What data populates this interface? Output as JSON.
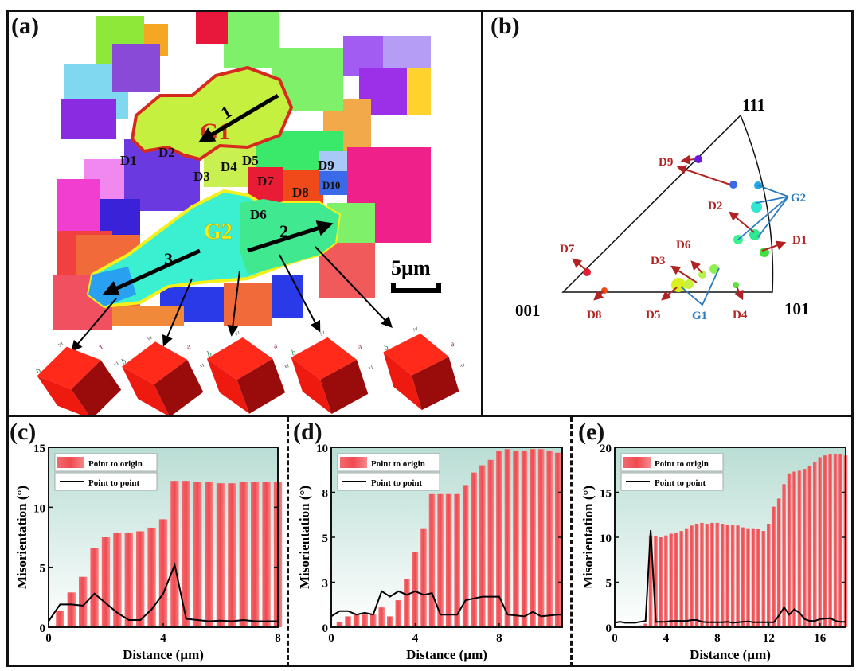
{
  "panels": {
    "a": {
      "label": "(a)"
    },
    "b": {
      "label": "(b)"
    },
    "c": {
      "label": "(c)"
    },
    "d": {
      "label": "(d)"
    },
    "e": {
      "label": "(e)"
    }
  },
  "map": {
    "scale_bar": "5µm",
    "groups": [
      {
        "name": "G1",
        "color": "#d62a1e"
      },
      {
        "name": "G2",
        "color": "#f4f01c"
      }
    ],
    "arrows": [
      "1",
      "2",
      "3"
    ],
    "labels": [
      "D1",
      "D2",
      "D3",
      "D4",
      "D5",
      "D6",
      "D7",
      "D8",
      "D9",
      "D10"
    ],
    "cube_axes": {
      "a": "a",
      "b": "b",
      "x1": "x1",
      "y1": "y1",
      "c": "c"
    },
    "cube_count": 5
  },
  "ipf": {
    "corners": {
      "c001": "001",
      "c101": "101",
      "c111": "111"
    },
    "group_labels": [
      {
        "name": "G1",
        "color": "#2b7bbf"
      },
      {
        "name": "G2",
        "color": "#2b7bbf"
      }
    ],
    "d_labels": [
      "D1",
      "D2",
      "D3",
      "D4",
      "D5",
      "D6",
      "D7",
      "D8",
      "D9"
    ],
    "label_color": "#b22222"
  },
  "chart_data": [
    {
      "id": "c",
      "type": "bar",
      "title": "",
      "xlabel": "Distance (µm)",
      "ylabel": "Misorientation (°)",
      "xlim": [
        0,
        8
      ],
      "ylim": [
        0,
        15
      ],
      "xticks": [
        "0",
        "4",
        "8"
      ],
      "xtick_values": [
        0,
        4,
        8
      ],
      "yticks": [
        "0",
        "5",
        "10",
        "15"
      ],
      "ytick_values": [
        0,
        5,
        10,
        15
      ],
      "legend": [
        "Point to origin",
        "Point to point"
      ],
      "legend_position": "top-left",
      "series": [
        {
          "name": "Point to origin",
          "type": "bar",
          "color": "#f05a5f",
          "x": [
            0.4,
            0.8,
            1.2,
            1.6,
            2.0,
            2.4,
            2.8,
            3.2,
            3.6,
            4.0,
            4.4,
            4.8,
            5.2,
            5.6,
            6.0,
            6.4,
            6.8,
            7.2,
            7.6,
            8.0
          ],
          "values": [
            1.4,
            2.9,
            4.2,
            6.6,
            7.5,
            7.9,
            7.9,
            8.0,
            8.3,
            9.0,
            12.2,
            12.2,
            12.1,
            12.1,
            12.0,
            12.0,
            12.1,
            12.1,
            12.1,
            12.1
          ]
        },
        {
          "name": "Point to point",
          "type": "line",
          "color": "#000000",
          "x": [
            0,
            0.4,
            0.8,
            1.2,
            1.6,
            2.0,
            2.4,
            2.8,
            3.2,
            3.6,
            4.0,
            4.4,
            4.8,
            5.2,
            5.6,
            6.0,
            6.4,
            6.8,
            7.2,
            7.6,
            8.0
          ],
          "values": [
            0.5,
            1.9,
            1.9,
            1.8,
            2.8,
            2.0,
            1.2,
            0.6,
            0.6,
            1.5,
            2.8,
            5.2,
            0.7,
            0.6,
            0.5,
            0.55,
            0.5,
            0.6,
            0.5,
            0.5,
            0.5
          ]
        }
      ]
    },
    {
      "id": "d",
      "type": "bar",
      "title": "",
      "xlabel": "Distance (µm)",
      "ylabel": "Misorientation (°)",
      "xlim": [
        0,
        11
      ],
      "ylim": [
        0,
        10
      ],
      "xticks": [
        "0",
        "4",
        "8"
      ],
      "xtick_values": [
        0,
        4,
        8
      ],
      "yticks": [
        "0",
        "3",
        "5",
        "8",
        "10"
      ],
      "ytick_values": [
        0,
        2.5,
        5,
        7.5,
        10
      ],
      "legend": [
        "Point to origin",
        "Point to point"
      ],
      "legend_position": "top-left",
      "series": [
        {
          "name": "Point to origin",
          "type": "bar",
          "color": "#f05a5f",
          "x": [
            0.4,
            0.8,
            1.2,
            1.6,
            2.0,
            2.4,
            2.8,
            3.2,
            3.6,
            4.0,
            4.4,
            4.8,
            5.2,
            5.6,
            6.0,
            6.4,
            6.8,
            7.2,
            7.6,
            8.0,
            8.4,
            8.8,
            9.2,
            9.6,
            10.0,
            10.4,
            10.8
          ],
          "values": [
            0.3,
            0.6,
            0.7,
            0.7,
            0.7,
            1.1,
            0.6,
            1.5,
            2.7,
            4.2,
            5.5,
            7.4,
            7.4,
            7.4,
            7.4,
            7.9,
            8.6,
            9.0,
            9.3,
            9.8,
            9.9,
            9.8,
            9.8,
            9.9,
            9.9,
            9.8,
            9.7
          ]
        },
        {
          "name": "Point to point",
          "type": "line",
          "color": "#000000",
          "x": [
            0,
            0.4,
            0.8,
            1.2,
            1.6,
            2.0,
            2.4,
            2.8,
            3.2,
            3.6,
            4.0,
            4.4,
            4.8,
            5.2,
            5.6,
            6.0,
            6.4,
            6.8,
            7.2,
            7.6,
            8.0,
            8.4,
            8.8,
            9.2,
            9.6,
            10.0,
            10.4,
            10.8,
            11.0
          ],
          "values": [
            0.6,
            0.9,
            0.9,
            0.7,
            0.8,
            0.7,
            2.0,
            1.7,
            2.0,
            1.8,
            2.0,
            1.8,
            1.9,
            0.7,
            0.7,
            0.7,
            1.5,
            1.6,
            1.7,
            1.7,
            1.7,
            0.7,
            0.65,
            0.6,
            0.85,
            0.6,
            0.65,
            0.7,
            0.7
          ]
        }
      ]
    },
    {
      "id": "e",
      "type": "bar",
      "title": "",
      "xlabel": "Distance (µm)",
      "ylabel": "Misorientation (°)",
      "xlim": [
        0,
        18
      ],
      "ylim": [
        0,
        20
      ],
      "xticks": [
        "0",
        "4",
        "8",
        "12",
        "16"
      ],
      "xtick_values": [
        0,
        4,
        8,
        12,
        16
      ],
      "yticks": [
        "0",
        "5",
        "10",
        "15",
        "20"
      ],
      "ytick_values": [
        0,
        5,
        10,
        15,
        20
      ],
      "legend": [
        "Point to origin",
        "Point to point"
      ],
      "legend_position": "top-left",
      "series": [
        {
          "name": "Point to origin",
          "type": "bar",
          "color": "#f05a5f",
          "x": [
            0.4,
            0.8,
            1.2,
            1.6,
            2.0,
            2.4,
            2.8,
            3.2,
            3.6,
            4.0,
            4.4,
            4.8,
            5.2,
            5.6,
            6.0,
            6.4,
            6.8,
            7.2,
            7.6,
            8.0,
            8.4,
            8.8,
            9.2,
            9.6,
            10.0,
            10.4,
            10.8,
            11.2,
            11.6,
            12.0,
            12.4,
            12.8,
            13.2,
            13.6,
            14.0,
            14.4,
            14.8,
            15.2,
            15.6,
            16.0,
            16.4,
            16.8,
            17.2,
            17.6,
            18.0
          ],
          "values": [
            0.1,
            0.1,
            0.1,
            0.1,
            0.2,
            0.4,
            10.2,
            10.1,
            10.0,
            10.2,
            10.4,
            10.5,
            10.7,
            11.0,
            11.3,
            11.5,
            11.6,
            11.5,
            11.6,
            11.6,
            11.5,
            11.4,
            11.4,
            11.3,
            11.1,
            11.0,
            11.0,
            10.9,
            10.7,
            11.5,
            13.4,
            14.3,
            15.9,
            17.1,
            17.3,
            17.4,
            17.6,
            17.9,
            18.4,
            18.9,
            19.1,
            19.2,
            19.2,
            19.2,
            19.1
          ]
        },
        {
          "name": "Point to point",
          "type": "line",
          "color": "#000000",
          "x": [
            0,
            0.4,
            0.8,
            1.2,
            1.6,
            2.0,
            2.4,
            2.8,
            3.2,
            3.6,
            4.0,
            4.4,
            4.8,
            5.2,
            5.6,
            6.0,
            6.4,
            6.8,
            7.2,
            7.6,
            8.0,
            8.4,
            8.8,
            9.2,
            9.6,
            10.0,
            10.4,
            10.8,
            11.2,
            11.6,
            12.0,
            12.4,
            12.8,
            13.2,
            13.6,
            14.0,
            14.4,
            14.8,
            15.2,
            15.6,
            16.0,
            16.4,
            16.8,
            17.2,
            17.6,
            18.0
          ],
          "values": [
            0.5,
            0.6,
            0.5,
            0.5,
            0.5,
            0.6,
            0.7,
            10.8,
            0.6,
            0.6,
            0.6,
            0.7,
            0.7,
            0.7,
            0.7,
            0.8,
            0.8,
            0.6,
            0.55,
            0.55,
            0.55,
            0.55,
            0.6,
            0.5,
            0.55,
            0.6,
            0.65,
            0.55,
            0.55,
            0.55,
            0.55,
            0.55,
            1.3,
            2.2,
            1.4,
            2.0,
            1.6,
            0.9,
            0.7,
            0.7,
            0.9,
            0.95,
            1.0,
            0.7,
            0.6,
            0.6
          ]
        }
      ]
    }
  ]
}
